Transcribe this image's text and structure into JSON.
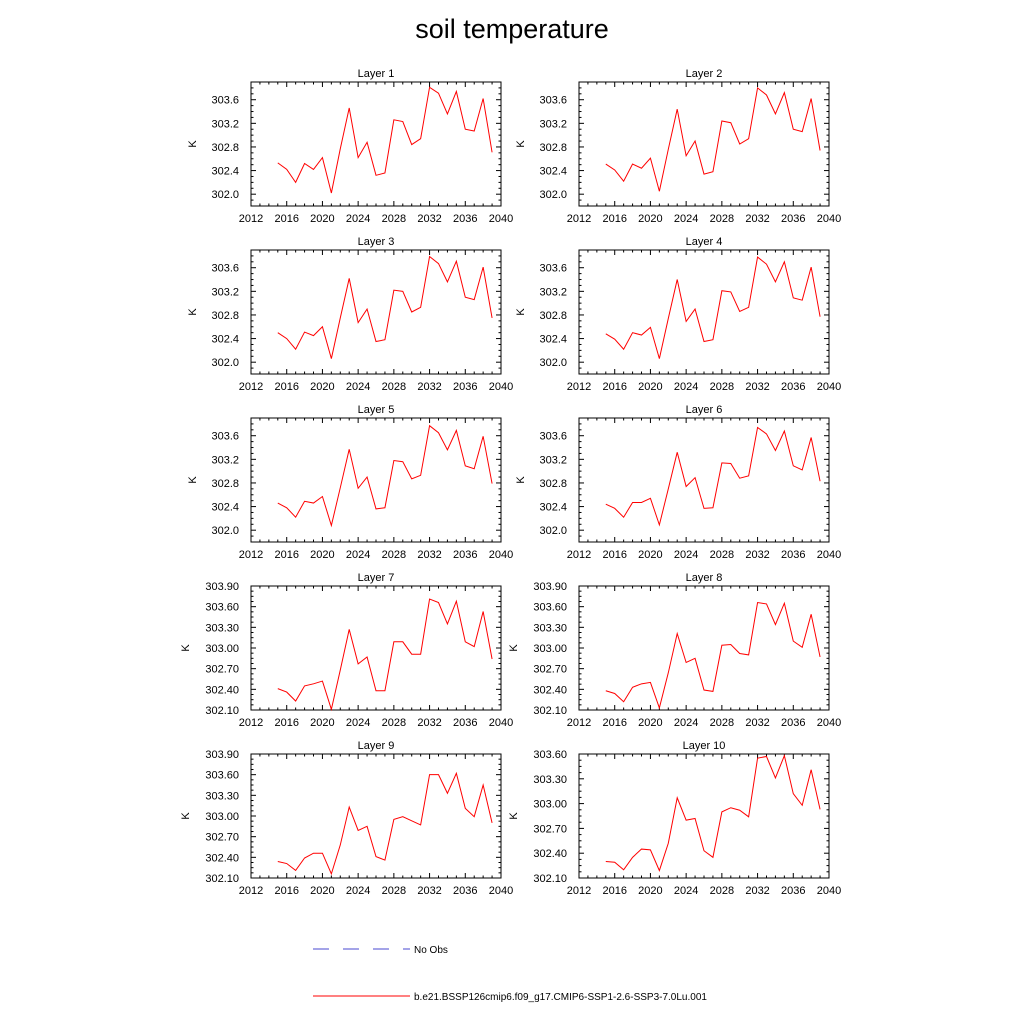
{
  "title": "soil temperature",
  "legend": {
    "entries": [
      {
        "label": "No Obs",
        "color": "#4a4ad0",
        "dash": "dashed"
      },
      {
        "label": "b.e21.BSSP126cmip6.f09_g17.CMIP6-SSP1-2.6-SSP3-7.0Lu.001",
        "color": "#ff0000",
        "dash": "solid"
      }
    ]
  },
  "chart_data": [
    {
      "type": "line",
      "title": "Layer 1",
      "ylabel": "K",
      "xlim": [
        2012,
        2040
      ],
      "xticks": [
        2012,
        2016,
        2020,
        2024,
        2028,
        2032,
        2036,
        2040
      ],
      "ylim": [
        301.8,
        303.9
      ],
      "yticks": [
        302.0,
        302.4,
        302.8,
        303.2,
        303.6
      ],
      "ydec": 1,
      "x": [
        2015,
        2016,
        2017,
        2018,
        2019,
        2020,
        2021,
        2022,
        2023,
        2024,
        2025,
        2026,
        2027,
        2028,
        2029,
        2030,
        2031,
        2032,
        2033,
        2034,
        2035,
        2036,
        2037,
        2038,
        2039
      ],
      "series": [
        {
          "name": "b.e21.BSSP126cmip6.f09_g17.CMIP6-SSP1-2.6-SSP3-7.0Lu.001",
          "color": "#ff0000",
          "values": [
            302.53,
            302.42,
            302.2,
            302.52,
            302.42,
            302.62,
            302.02,
            302.77,
            303.46,
            302.62,
            302.88,
            302.32,
            302.36,
            303.26,
            303.23,
            302.84,
            302.94,
            303.81,
            303.71,
            303.36,
            303.74,
            303.1,
            303.07,
            303.62,
            302.71
          ]
        }
      ]
    },
    {
      "type": "line",
      "title": "Layer 2",
      "ylabel": "K",
      "xlim": [
        2012,
        2040
      ],
      "xticks": [
        2012,
        2016,
        2020,
        2024,
        2028,
        2032,
        2036,
        2040
      ],
      "ylim": [
        301.8,
        303.9
      ],
      "yticks": [
        302.0,
        302.4,
        302.8,
        303.2,
        303.6
      ],
      "ydec": 1,
      "x": [
        2015,
        2016,
        2017,
        2018,
        2019,
        2020,
        2021,
        2022,
        2023,
        2024,
        2025,
        2026,
        2027,
        2028,
        2029,
        2030,
        2031,
        2032,
        2033,
        2034,
        2035,
        2036,
        2037,
        2038,
        2039
      ],
      "series": [
        {
          "name": "b.e21.BSSP126cmip6.f09_g17.CMIP6-SSP1-2.6-SSP3-7.0Lu.001",
          "color": "#ff0000",
          "values": [
            302.51,
            302.41,
            302.22,
            302.51,
            302.44,
            302.61,
            302.05,
            302.76,
            303.44,
            302.65,
            302.9,
            302.34,
            302.38,
            303.24,
            303.21,
            302.85,
            302.94,
            303.8,
            303.68,
            303.36,
            303.72,
            303.1,
            303.06,
            303.62,
            302.74
          ]
        }
      ]
    },
    {
      "type": "line",
      "title": "Layer 3",
      "ylabel": "K",
      "xlim": [
        2012,
        2040
      ],
      "xticks": [
        2012,
        2016,
        2020,
        2024,
        2028,
        2032,
        2036,
        2040
      ],
      "ylim": [
        301.8,
        303.9
      ],
      "yticks": [
        302.0,
        302.4,
        302.8,
        303.2,
        303.6
      ],
      "ydec": 1,
      "x": [
        2015,
        2016,
        2017,
        2018,
        2019,
        2020,
        2021,
        2022,
        2023,
        2024,
        2025,
        2026,
        2027,
        2028,
        2029,
        2030,
        2031,
        2032,
        2033,
        2034,
        2035,
        2036,
        2037,
        2038,
        2039
      ],
      "series": [
        {
          "name": "b.e21.BSSP126cmip6.f09_g17.CMIP6-SSP1-2.6-SSP3-7.0Lu.001",
          "color": "#ff0000",
          "values": [
            302.5,
            302.4,
            302.22,
            302.51,
            302.45,
            302.6,
            302.06,
            302.75,
            303.42,
            302.67,
            302.9,
            302.35,
            302.38,
            303.22,
            303.2,
            302.85,
            302.93,
            303.79,
            303.67,
            303.36,
            303.71,
            303.1,
            303.06,
            303.61,
            302.75
          ]
        }
      ]
    },
    {
      "type": "line",
      "title": "Layer 4",
      "ylabel": "K",
      "xlim": [
        2012,
        2040
      ],
      "xticks": [
        2012,
        2016,
        2020,
        2024,
        2028,
        2032,
        2036,
        2040
      ],
      "ylim": [
        301.8,
        303.9
      ],
      "yticks": [
        302.0,
        302.4,
        302.8,
        303.2,
        303.6
      ],
      "ydec": 1,
      "x": [
        2015,
        2016,
        2017,
        2018,
        2019,
        2020,
        2021,
        2022,
        2023,
        2024,
        2025,
        2026,
        2027,
        2028,
        2029,
        2030,
        2031,
        2032,
        2033,
        2034,
        2035,
        2036,
        2037,
        2038,
        2039
      ],
      "series": [
        {
          "name": "b.e21.BSSP126cmip6.f09_g17.CMIP6-SSP1-2.6-SSP3-7.0Lu.001",
          "color": "#ff0000",
          "values": [
            302.48,
            302.39,
            302.22,
            302.5,
            302.46,
            302.59,
            302.06,
            302.74,
            303.4,
            302.69,
            302.9,
            302.35,
            302.38,
            303.21,
            303.19,
            302.86,
            302.93,
            303.78,
            303.66,
            303.36,
            303.7,
            303.09,
            303.05,
            303.61,
            302.77
          ]
        }
      ]
    },
    {
      "type": "line",
      "title": "Layer 5",
      "ylabel": "K",
      "xlim": [
        2012,
        2040
      ],
      "xticks": [
        2012,
        2016,
        2020,
        2024,
        2028,
        2032,
        2036,
        2040
      ],
      "ylim": [
        301.8,
        303.9
      ],
      "yticks": [
        302.0,
        302.4,
        302.8,
        303.2,
        303.6
      ],
      "ydec": 1,
      "x": [
        2015,
        2016,
        2017,
        2018,
        2019,
        2020,
        2021,
        2022,
        2023,
        2024,
        2025,
        2026,
        2027,
        2028,
        2029,
        2030,
        2031,
        2032,
        2033,
        2034,
        2035,
        2036,
        2037,
        2038,
        2039
      ],
      "series": [
        {
          "name": "b.e21.BSSP126cmip6.f09_g17.CMIP6-SSP1-2.6-SSP3-7.0Lu.001",
          "color": "#ff0000",
          "values": [
            302.46,
            302.38,
            302.22,
            302.49,
            302.46,
            302.57,
            302.08,
            302.72,
            303.37,
            302.71,
            302.9,
            302.36,
            302.38,
            303.18,
            303.16,
            302.87,
            302.93,
            303.77,
            303.65,
            303.36,
            303.69,
            303.09,
            303.04,
            303.59,
            302.79
          ]
        }
      ]
    },
    {
      "type": "line",
      "title": "Layer 6",
      "ylabel": "K",
      "xlim": [
        2012,
        2040
      ],
      "xticks": [
        2012,
        2016,
        2020,
        2024,
        2028,
        2032,
        2036,
        2040
      ],
      "ylim": [
        301.8,
        303.9
      ],
      "yticks": [
        302.0,
        302.4,
        302.8,
        303.2,
        303.6
      ],
      "ydec": 1,
      "x": [
        2015,
        2016,
        2017,
        2018,
        2019,
        2020,
        2021,
        2022,
        2023,
        2024,
        2025,
        2026,
        2027,
        2028,
        2029,
        2030,
        2031,
        2032,
        2033,
        2034,
        2035,
        2036,
        2037,
        2038,
        2039
      ],
      "series": [
        {
          "name": "b.e21.BSSP126cmip6.f09_g17.CMIP6-SSP1-2.6-SSP3-7.0Lu.001",
          "color": "#ff0000",
          "values": [
            302.44,
            302.37,
            302.22,
            302.47,
            302.47,
            302.54,
            302.09,
            302.7,
            303.32,
            302.74,
            302.89,
            302.37,
            302.38,
            303.14,
            303.13,
            302.88,
            302.92,
            303.74,
            303.63,
            303.35,
            303.68,
            303.09,
            303.02,
            303.57,
            302.83
          ]
        }
      ]
    },
    {
      "type": "line",
      "title": "Layer 7",
      "ylabel": "K",
      "xlim": [
        2012,
        2040
      ],
      "xticks": [
        2012,
        2016,
        2020,
        2024,
        2028,
        2032,
        2036,
        2040
      ],
      "ylim": [
        302.1,
        303.9
      ],
      "yticks": [
        302.1,
        302.4,
        302.7,
        303.0,
        303.3,
        303.6,
        303.9
      ],
      "ydec": 2,
      "x": [
        2015,
        2016,
        2017,
        2018,
        2019,
        2020,
        2021,
        2022,
        2023,
        2024,
        2025,
        2026,
        2027,
        2028,
        2029,
        2030,
        2031,
        2032,
        2033,
        2034,
        2035,
        2036,
        2037,
        2038,
        2039
      ],
      "series": [
        {
          "name": "b.e21.BSSP126cmip6.f09_g17.CMIP6-SSP1-2.6-SSP3-7.0Lu.001",
          "color": "#ff0000",
          "values": [
            302.41,
            302.36,
            302.23,
            302.45,
            302.48,
            302.52,
            302.11,
            302.68,
            303.27,
            302.77,
            302.87,
            302.38,
            302.38,
            303.09,
            303.09,
            302.91,
            302.91,
            303.71,
            303.66,
            303.35,
            303.68,
            303.09,
            303.02,
            303.53,
            302.84
          ]
        }
      ]
    },
    {
      "type": "line",
      "title": "Layer 8",
      "ylabel": "K",
      "xlim": [
        2012,
        2040
      ],
      "xticks": [
        2012,
        2016,
        2020,
        2024,
        2028,
        2032,
        2036,
        2040
      ],
      "ylim": [
        302.1,
        303.9
      ],
      "yticks": [
        302.1,
        302.4,
        302.7,
        303.0,
        303.3,
        303.6,
        303.9
      ],
      "ydec": 2,
      "x": [
        2015,
        2016,
        2017,
        2018,
        2019,
        2020,
        2021,
        2022,
        2023,
        2024,
        2025,
        2026,
        2027,
        2028,
        2029,
        2030,
        2031,
        2032,
        2033,
        2034,
        2035,
        2036,
        2037,
        2038,
        2039
      ],
      "series": [
        {
          "name": "b.e21.BSSP126cmip6.f09_g17.CMIP6-SSP1-2.6-SSP3-7.0Lu.001",
          "color": "#ff0000",
          "values": [
            302.38,
            302.34,
            302.22,
            302.43,
            302.48,
            302.5,
            302.13,
            302.64,
            303.21,
            302.79,
            302.85,
            302.39,
            302.37,
            303.04,
            303.05,
            302.92,
            302.9,
            303.66,
            303.64,
            303.34,
            303.65,
            303.1,
            303.01,
            303.49,
            302.87
          ]
        }
      ]
    },
    {
      "type": "line",
      "title": "Layer 9",
      "ylabel": "K",
      "xlim": [
        2012,
        2040
      ],
      "xticks": [
        2012,
        2016,
        2020,
        2024,
        2028,
        2032,
        2036,
        2040
      ],
      "ylim": [
        302.1,
        303.9
      ],
      "yticks": [
        302.1,
        302.4,
        302.7,
        303.0,
        303.3,
        303.6,
        303.9
      ],
      "ydec": 2,
      "x": [
        2015,
        2016,
        2017,
        2018,
        2019,
        2020,
        2021,
        2022,
        2023,
        2024,
        2025,
        2026,
        2027,
        2028,
        2029,
        2030,
        2031,
        2032,
        2033,
        2034,
        2035,
        2036,
        2037,
        2038,
        2039
      ],
      "series": [
        {
          "name": "b.e21.BSSP126cmip6.f09_g17.CMIP6-SSP1-2.6-SSP3-7.0Lu.001",
          "color": "#ff0000",
          "values": [
            302.34,
            302.31,
            302.21,
            302.39,
            302.46,
            302.46,
            302.16,
            302.58,
            303.13,
            302.79,
            302.85,
            302.41,
            302.36,
            302.95,
            302.99,
            302.93,
            302.87,
            303.6,
            303.6,
            303.33,
            303.62,
            303.11,
            302.99,
            303.45,
            302.9
          ]
        }
      ]
    },
    {
      "type": "line",
      "title": "Layer 10",
      "ylabel": "K",
      "xlim": [
        2012,
        2040
      ],
      "xticks": [
        2012,
        2016,
        2020,
        2024,
        2028,
        2032,
        2036,
        2040
      ],
      "ylim": [
        302.1,
        303.6
      ],
      "yticks": [
        302.1,
        302.4,
        302.7,
        303.0,
        303.3,
        303.6
      ],
      "ydec": 2,
      "x": [
        2015,
        2016,
        2017,
        2018,
        2019,
        2020,
        2021,
        2022,
        2023,
        2024,
        2025,
        2026,
        2027,
        2028,
        2029,
        2030,
        2031,
        2032,
        2033,
        2034,
        2035,
        2036,
        2037,
        2038,
        2039
      ],
      "series": [
        {
          "name": "b.e21.BSSP126cmip6.f09_g17.CMIP6-SSP1-2.6-SSP3-7.0Lu.001",
          "color": "#ff0000",
          "values": [
            302.3,
            302.29,
            302.2,
            302.35,
            302.45,
            302.44,
            302.19,
            302.52,
            303.07,
            302.8,
            302.82,
            302.43,
            302.35,
            302.9,
            302.95,
            302.92,
            302.84,
            303.55,
            303.57,
            303.31,
            303.58,
            303.12,
            302.98,
            303.41,
            302.93
          ]
        }
      ]
    }
  ]
}
